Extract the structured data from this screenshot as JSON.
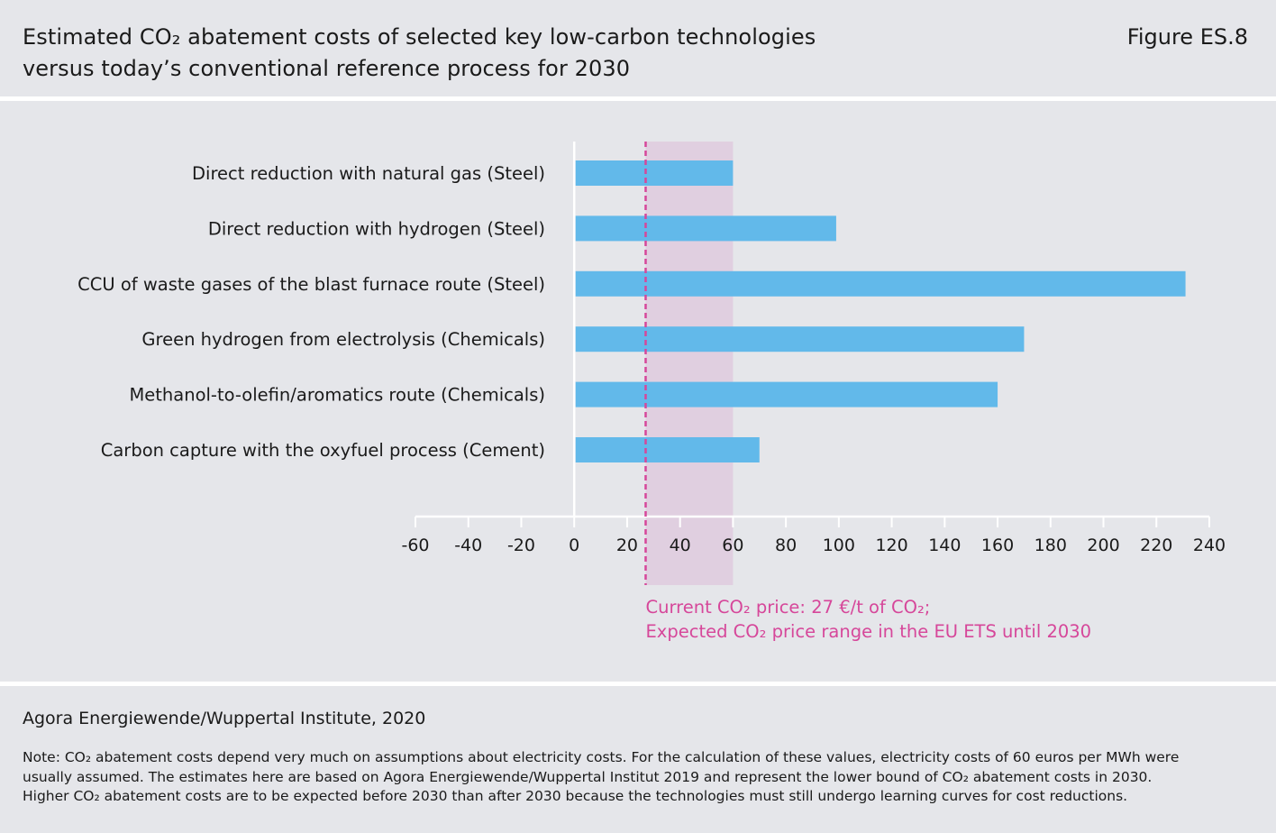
{
  "header": {
    "title_line1": "Estimated CO₂ abatement costs of selected key low-carbon technologies",
    "title_line2": "versus today’s conventional reference process for 2030",
    "figure_label": "Figure ES.8"
  },
  "chart_data": {
    "type": "bar",
    "orientation": "horizontal",
    "categories": [
      "Direct reduction with natural gas (Steel)",
      "Direct reduction with hydrogen (Steel)",
      "CCU of waste gases of the blast furnace route (Steel)",
      "Green hydrogen from electrolysis (Chemicals)",
      "Methanol-to-olefin/aromatics route (Chemicals)",
      "Carbon capture with the oxyfuel process (Cement)"
    ],
    "values": [
      60,
      99,
      231,
      170,
      160,
      70
    ],
    "xlim": [
      -60,
      240
    ],
    "xticks": [
      "-60",
      "-40",
      "-20",
      "0",
      "20",
      "40",
      "60",
      "80",
      "100",
      "120",
      "140",
      "160",
      "180",
      "200",
      "220",
      "240"
    ],
    "current_price": 27,
    "price_range": [
      27,
      60
    ],
    "annotation_line1": "Current CO₂ price: 27 €/t of CO₂;",
    "annotation_line2": "Expected CO₂ price range in the EU ETS until 2030",
    "colors": {
      "bar": "#62b9ea",
      "band": "#e0cfe0",
      "accent": "#d6479a",
      "axis": "#ffffff"
    }
  },
  "footer": {
    "source": "Agora Energiewende/Wuppertal Institute, 2020",
    "note_line1": "Note: CO₂ abatement costs depend very much on assumptions about electricity costs. For the calculation of these values, electricity costs of 60 euros per MWh were",
    "note_line2": "usually assumed. The estimates here are based on Agora Energiewende/Wuppertal Institut 2019 and represent the lower bound of CO₂ abatement costs in 2030.",
    "note_line3": "Higher CO₂ abatement costs are to be expected before 2030 than after 2030 because the technologies must still undergo learning curves for cost reductions."
  }
}
